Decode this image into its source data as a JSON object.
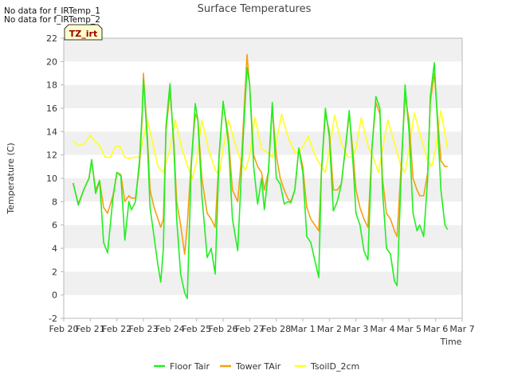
{
  "notes": [
    "No data for f_IRTemp_1",
    "No data for f_IRTemp_2"
  ],
  "colors": {
    "floor_tair": "#22ee22",
    "tower_tair": "#f5a010",
    "tsoil": "#ffff22",
    "band": "#f0f0f0",
    "axis": "#b8b8b8",
    "badge_bg": "#ffffcc",
    "badge_text": "#990000"
  },
  "chart_data": {
    "type": "line",
    "title": "Surface Temperatures",
    "xlabel": "Time",
    "ylabel": "Temperature (C)",
    "badge": "TZ_irt",
    "xlim": [
      0,
      15
    ],
    "ylim": [
      -2,
      22
    ],
    "x_ticks": [
      0,
      1,
      2,
      3,
      4,
      5,
      6,
      7,
      8,
      9,
      10,
      11,
      12,
      13,
      14,
      15
    ],
    "x_tick_labels": [
      "Feb 20",
      "Feb 21",
      "Feb 22",
      "Feb 23",
      "Feb 24",
      "Feb 25",
      "Feb 26",
      "Feb 27",
      "Feb 28",
      "Mar 1",
      "Mar 2",
      "Mar 3",
      "Mar 4",
      "Mar 5",
      "Mar 6",
      "Mar 7"
    ],
    "y_ticks": [
      -2,
      0,
      2,
      4,
      6,
      8,
      10,
      12,
      14,
      16,
      18,
      20,
      22
    ],
    "y_tick_labels": [
      "-2",
      "0",
      "2",
      "4",
      "6",
      "8",
      "10",
      "12",
      "14",
      "16",
      "18",
      "20",
      "22"
    ],
    "grid": "alternating horizontal bands",
    "legend_position": "bottom",
    "series": [
      {
        "name": "Floor Tair",
        "color_key": "floor_tair",
        "x": [
          0.35,
          0.55,
          0.75,
          0.95,
          1.05,
          1.2,
          1.35,
          1.5,
          1.65,
          1.85,
          2.0,
          2.15,
          2.3,
          2.45,
          2.55,
          2.7,
          2.85,
          2.95,
          3.0,
          3.15,
          3.25,
          3.4,
          3.55,
          3.65,
          3.75,
          3.85,
          4.0,
          4.15,
          4.25,
          4.4,
          4.55,
          4.65,
          4.8,
          4.95,
          5.05,
          5.2,
          5.4,
          5.55,
          5.7,
          5.85,
          6.0,
          6.2,
          6.35,
          6.55,
          6.7,
          6.9,
          7.0,
          7.15,
          7.3,
          7.45,
          7.55,
          7.7,
          7.85,
          8.0,
          8.15,
          8.3,
          8.45,
          8.55,
          8.7,
          8.85,
          9.0,
          9.15,
          9.3,
          9.45,
          9.6,
          9.7,
          9.85,
          10.0,
          10.15,
          10.3,
          10.45,
          10.6,
          10.75,
          10.9,
          11.0,
          11.15,
          11.3,
          11.45,
          11.6,
          11.75,
          11.9,
          12.0,
          12.15,
          12.3,
          12.45,
          12.55,
          12.7,
          12.85,
          13.0,
          13.15,
          13.3,
          13.4,
          13.55,
          13.7,
          13.8,
          13.95,
          14.1,
          14.2,
          14.35,
          14.45
        ],
        "y": [
          9.6,
          7.7,
          9.0,
          10.0,
          11.6,
          8.7,
          9.8,
          4.5,
          3.6,
          8.3,
          10.5,
          10.2,
          4.7,
          8.0,
          7.3,
          8.0,
          11.5,
          15.5,
          18.5,
          13.0,
          7.5,
          5.0,
          2.5,
          1.1,
          4.0,
          14.5,
          18.1,
          12.5,
          6.5,
          1.8,
          0.2,
          -0.3,
          11.0,
          16.4,
          15.0,
          8.5,
          3.2,
          4.0,
          1.8,
          12.0,
          16.6,
          13.0,
          6.5,
          3.8,
          11.0,
          19.5,
          18.0,
          11.0,
          7.8,
          10.0,
          7.3,
          10.5,
          16.5,
          10.0,
          9.5,
          7.8,
          8.0,
          7.9,
          9.0,
          12.6,
          10.5,
          5.0,
          4.5,
          3.0,
          1.5,
          10.5,
          16.0,
          13.5,
          7.2,
          8.0,
          9.5,
          12.5,
          15.8,
          11.0,
          7.0,
          6.0,
          3.8,
          3.0,
          12.5,
          17.0,
          16.0,
          9.0,
          4.0,
          3.5,
          1.2,
          0.8,
          10.0,
          18.0,
          14.0,
          7.0,
          5.5,
          6.0,
          5.0,
          10.0,
          17.0,
          19.9,
          13.5,
          9.0,
          6.0,
          5.6
        ]
      },
      {
        "name": "Tower TAir",
        "color_key": "tower_tair",
        "x": [
          0.35,
          0.55,
          0.75,
          0.95,
          1.05,
          1.2,
          1.35,
          1.5,
          1.65,
          1.85,
          2.0,
          2.15,
          2.3,
          2.45,
          2.55,
          2.7,
          2.85,
          2.95,
          3.0,
          3.15,
          3.25,
          3.4,
          3.55,
          3.65,
          3.75,
          3.85,
          4.0,
          4.15,
          4.25,
          4.4,
          4.55,
          4.65,
          4.8,
          4.95,
          5.05,
          5.2,
          5.4,
          5.55,
          5.7,
          5.85,
          6.0,
          6.2,
          6.35,
          6.55,
          6.7,
          6.9,
          7.0,
          7.15,
          7.3,
          7.45,
          7.55,
          7.7,
          7.85,
          8.0,
          8.15,
          8.3,
          8.45,
          8.55,
          8.7,
          8.85,
          9.0,
          9.15,
          9.3,
          9.45,
          9.6,
          9.7,
          9.85,
          10.0,
          10.15,
          10.3,
          10.45,
          10.6,
          10.75,
          10.9,
          11.0,
          11.15,
          11.3,
          11.45,
          11.6,
          11.75,
          11.9,
          12.0,
          12.15,
          12.3,
          12.45,
          12.55,
          12.7,
          12.85,
          13.0,
          13.15,
          13.3,
          13.4,
          13.55,
          13.7,
          13.8,
          13.95,
          14.1,
          14.2,
          14.35,
          14.45
        ],
        "y": [
          9.6,
          7.8,
          9.0,
          10.0,
          11.5,
          9.0,
          9.8,
          7.5,
          7.0,
          8.5,
          10.5,
          10.3,
          8.0,
          8.5,
          8.3,
          8.3,
          11.0,
          15.0,
          19.0,
          13.5,
          9.0,
          7.5,
          6.5,
          5.8,
          6.5,
          14.0,
          17.5,
          13.0,
          8.0,
          6.0,
          3.5,
          6.0,
          11.5,
          15.5,
          15.0,
          10.0,
          7.0,
          6.5,
          5.8,
          12.0,
          16.5,
          13.5,
          9.0,
          8.0,
          12.0,
          20.6,
          18.0,
          12.0,
          11.0,
          10.5,
          9.0,
          10.5,
          16.0,
          12.0,
          10.0,
          9.0,
          8.2,
          8.0,
          9.0,
          12.5,
          11.0,
          7.5,
          6.5,
          6.0,
          5.5,
          10.5,
          15.5,
          14.0,
          9.0,
          9.0,
          9.5,
          12.5,
          15.5,
          12.0,
          9.0,
          7.5,
          6.5,
          5.8,
          12.5,
          16.5,
          15.5,
          10.0,
          7.0,
          6.5,
          5.5,
          5.0,
          11.0,
          17.0,
          15.0,
          10.0,
          9.0,
          8.5,
          8.5,
          10.5,
          16.5,
          19.0,
          14.5,
          11.5,
          11.0,
          11.0
        ]
      },
      {
        "name": "TsoilD_2cm",
        "color_key": "tsoil",
        "x": [
          0.35,
          0.55,
          0.8,
          1.0,
          1.15,
          1.35,
          1.55,
          1.75,
          1.95,
          2.1,
          2.3,
          2.45,
          2.65,
          2.85,
          3.0,
          3.15,
          3.35,
          3.55,
          3.75,
          4.0,
          4.2,
          4.45,
          4.7,
          4.85,
          5.0,
          5.2,
          5.45,
          5.7,
          5.85,
          6.0,
          6.2,
          6.45,
          6.7,
          6.85,
          7.0,
          7.2,
          7.45,
          7.7,
          7.85,
          8.0,
          8.2,
          8.45,
          8.7,
          8.85,
          9.0,
          9.2,
          9.45,
          9.7,
          9.85,
          10.0,
          10.2,
          10.45,
          10.7,
          10.85,
          11.0,
          11.2,
          11.45,
          11.7,
          11.85,
          12.0,
          12.2,
          12.45,
          12.7,
          12.85,
          13.0,
          13.2,
          13.45,
          13.7,
          13.85,
          14.0,
          14.2,
          14.45
        ],
        "y": [
          13.2,
          12.8,
          13.0,
          13.7,
          13.2,
          12.8,
          11.8,
          11.8,
          12.7,
          12.8,
          11.8,
          11.7,
          11.8,
          11.8,
          13.5,
          15.0,
          13.0,
          11.0,
          10.5,
          12.5,
          15.0,
          12.5,
          10.8,
          10.0,
          11.5,
          15.0,
          12.5,
          10.7,
          10.3,
          12.5,
          15.0,
          13.0,
          11.2,
          10.7,
          12.0,
          15.2,
          12.5,
          12.2,
          11.8,
          13.0,
          15.5,
          13.5,
          12.2,
          12.2,
          12.7,
          13.6,
          12.0,
          11.0,
          10.5,
          12.5,
          15.4,
          13.0,
          11.8,
          11.8,
          12.5,
          15.2,
          12.8,
          11.5,
          10.5,
          12.5,
          15.0,
          13.0,
          11.0,
          10.5,
          12.5,
          15.6,
          13.5,
          11.5,
          11.0,
          12.5,
          15.8,
          12.5
        ]
      }
    ]
  }
}
